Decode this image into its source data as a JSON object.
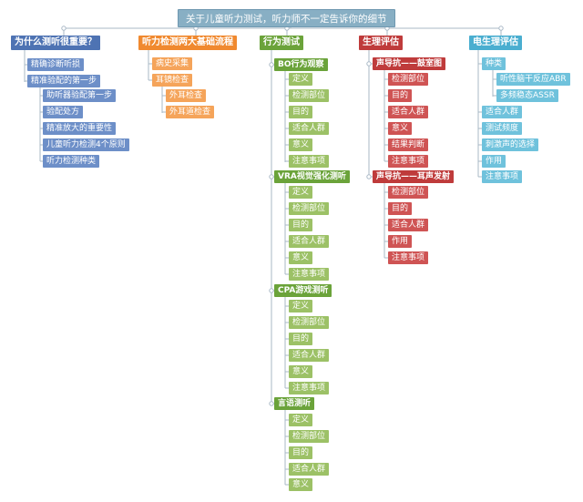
{
  "root": "关于儿童听力测试，听力师不一定告诉你的细节",
  "branches": {
    "b1": {
      "title": "为什么测听很重要？",
      "items": [
        "精确诊断听损",
        "精准验配的第一步"
      ],
      "sub": [
        "助听器验配第一步",
        "验配处方",
        "精准放大的重要性",
        "儿童听力检测4个原则",
        "听力检测种类"
      ]
    },
    "b2": {
      "title": "听力检测两大基础流程",
      "items": [
        "病史采集",
        "耳镜检查"
      ],
      "sub": [
        "外耳检查",
        "外耳道检查"
      ]
    },
    "b3": {
      "title": "行为测试",
      "groups": [
        {
          "title": "BO行为观察",
          "items": [
            "定义",
            "检测部位",
            "目的",
            "适合人群",
            "意义",
            "注意事项"
          ]
        },
        {
          "title": "VRA视觉强化测听",
          "items": [
            "定义",
            "检测部位",
            "目的",
            "适合人群",
            "意义",
            "注意事项"
          ]
        },
        {
          "title": "CPA游戏测听",
          "items": [
            "定义",
            "检测部位",
            "目的",
            "适合人群",
            "意义",
            "注意事项"
          ]
        },
        {
          "title": "言语测听",
          "items": [
            "定义",
            "检测部位",
            "目的",
            "适合人群",
            "意义"
          ]
        }
      ]
    },
    "b4": {
      "title": "生理评估",
      "groups": [
        {
          "title": "声导抗——鼓室图",
          "items": [
            "检测部位",
            "目的",
            "适合人群",
            "意义",
            "结果判断",
            "注意事项"
          ]
        },
        {
          "title": "声导抗——耳声发射",
          "items": [
            "检测部位",
            "目的",
            "适合人群",
            "作用",
            "注意事项"
          ]
        }
      ]
    },
    "b5": {
      "title": "电生理评估",
      "kinds": "种类",
      "kind_items": [
        "听性脑干反应ABR",
        "多频稳态ASSR"
      ],
      "items": [
        "适合人群",
        "测试频度",
        "刺激声的选择",
        "作用",
        "注意事项"
      ]
    }
  },
  "colors": {
    "line": "#a9b8c6",
    "blue": "#4e73b3",
    "orange": "#f0892f",
    "green": "#6ba33a",
    "red": "#bf3b3b",
    "teal": "#4aaed0",
    "root": "#88afc4"
  }
}
